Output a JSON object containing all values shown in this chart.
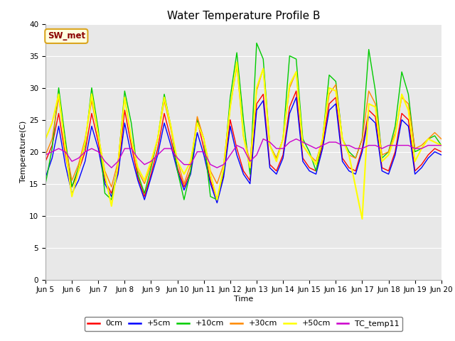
{
  "title": "Water Temperature Profile B",
  "xlabel": "Time",
  "ylabel": "Temperature(C)",
  "ylim": [
    0,
    40
  ],
  "xlim_days": [
    5,
    20
  ],
  "annotation": "SW_met",
  "legend_labels": [
    "0cm",
    "+5cm",
    "+10cm",
    "+30cm",
    "+50cm",
    "TC_temp11"
  ],
  "line_colors": [
    "#ff0000",
    "#0000ff",
    "#00cc00",
    "#ff8800",
    "#ffff00",
    "#cc00cc"
  ],
  "line_widths": [
    1.0,
    1.0,
    1.0,
    1.0,
    1.5,
    1.0
  ],
  "bg_color": "#e8e8e8",
  "fig_color": "#ffffff",
  "grid_color": "#ffffff",
  "title_fontsize": 11,
  "axis_label_fontsize": 8,
  "tick_label_fontsize": 7.5,
  "tick_dates": [
    "Jun 5",
    "Jun 6",
    "Jun 7",
    "Jun 8",
    "Jun 9",
    "Jun 10",
    "Jun 11",
    "Jun 12",
    "Jun 13",
    "Jun 14",
    "Jun 15",
    "Jun 16",
    "Jun 17",
    "Jun 18",
    "Jun 19",
    "Jun 20"
  ],
  "tick_positions": [
    5,
    6,
    7,
    8,
    9,
    10,
    11,
    12,
    13,
    14,
    15,
    16,
    17,
    18,
    19,
    20
  ],
  "data_x": [
    5.0,
    5.25,
    5.5,
    5.75,
    6.0,
    6.25,
    6.5,
    6.75,
    7.0,
    7.25,
    7.5,
    7.75,
    8.0,
    8.25,
    8.5,
    8.75,
    9.0,
    9.25,
    9.5,
    9.75,
    10.0,
    10.25,
    10.5,
    10.75,
    11.0,
    11.25,
    11.5,
    11.75,
    12.0,
    12.25,
    12.5,
    12.75,
    13.0,
    13.25,
    13.5,
    13.75,
    14.0,
    14.25,
    14.5,
    14.75,
    15.0,
    15.25,
    15.5,
    15.75,
    16.0,
    16.25,
    16.5,
    16.75,
    17.0,
    17.25,
    17.5,
    17.75,
    18.0,
    18.25,
    18.5,
    18.75,
    19.0,
    19.25,
    19.5,
    19.75,
    20.0
  ],
  "data_0cm": [
    18.5,
    21.0,
    26.0,
    19.5,
    14.5,
    17.0,
    20.0,
    26.0,
    21.5,
    15.5,
    13.5,
    17.0,
    26.5,
    21.0,
    16.0,
    13.0,
    16.5,
    20.5,
    26.0,
    22.0,
    17.5,
    14.5,
    17.0,
    25.0,
    20.5,
    15.5,
    12.5,
    16.5,
    25.0,
    20.5,
    17.0,
    15.5,
    27.5,
    29.0,
    18.0,
    17.0,
    19.5,
    27.0,
    29.5,
    19.0,
    17.5,
    17.0,
    21.0,
    27.5,
    28.5,
    19.0,
    17.5,
    17.0,
    20.5,
    26.5,
    25.5,
    17.5,
    17.0,
    20.0,
    26.0,
    25.0,
    17.0,
    18.0,
    19.5,
    20.5,
    20.0
  ],
  "data_5cm": [
    16.0,
    19.0,
    24.0,
    18.0,
    13.5,
    15.5,
    18.5,
    24.0,
    20.5,
    15.0,
    13.0,
    16.5,
    24.5,
    19.5,
    15.5,
    12.5,
    16.0,
    19.5,
    24.5,
    21.0,
    17.0,
    14.0,
    16.5,
    23.0,
    19.5,
    15.0,
    12.0,
    16.0,
    24.0,
    19.5,
    16.5,
    15.0,
    26.5,
    28.0,
    17.5,
    16.5,
    19.0,
    26.0,
    28.5,
    18.5,
    17.0,
    16.5,
    20.5,
    26.5,
    27.5,
    18.5,
    17.0,
    16.5,
    20.0,
    25.5,
    24.5,
    17.0,
    16.5,
    19.5,
    25.0,
    24.0,
    16.5,
    17.5,
    19.0,
    20.0,
    19.5
  ],
  "data_10cm": [
    15.0,
    20.5,
    30.0,
    22.0,
    14.5,
    17.5,
    21.0,
    30.0,
    23.5,
    13.5,
    12.5,
    18.0,
    29.5,
    24.5,
    16.5,
    13.5,
    17.5,
    22.0,
    29.0,
    24.0,
    17.0,
    12.5,
    17.0,
    25.0,
    22.0,
    13.0,
    12.5,
    17.0,
    28.5,
    35.5,
    25.0,
    16.5,
    37.0,
    34.5,
    21.0,
    19.0,
    22.0,
    35.0,
    34.5,
    22.0,
    20.0,
    17.0,
    22.0,
    32.0,
    31.0,
    22.0,
    20.0,
    19.0,
    22.0,
    36.0,
    29.5,
    19.0,
    20.0,
    24.0,
    32.5,
    29.0,
    20.0,
    20.5,
    22.0,
    22.5,
    21.0
  ],
  "data_30cm": [
    19.5,
    22.0,
    28.5,
    21.0,
    15.5,
    18.0,
    22.0,
    28.0,
    22.5,
    17.0,
    14.5,
    18.5,
    28.5,
    22.0,
    17.0,
    15.0,
    18.0,
    22.0,
    28.0,
    23.5,
    18.5,
    15.0,
    18.0,
    25.5,
    22.0,
    17.0,
    15.0,
    18.0,
    27.0,
    33.5,
    22.5,
    18.5,
    29.5,
    33.0,
    21.0,
    19.0,
    22.0,
    30.0,
    32.5,
    21.0,
    19.5,
    18.5,
    22.0,
    29.0,
    30.5,
    22.0,
    19.5,
    19.0,
    22.0,
    29.5,
    27.5,
    19.5,
    20.0,
    23.0,
    28.5,
    27.5,
    20.5,
    21.0,
    22.0,
    23.0,
    22.0
  ],
  "data_50cm": [
    22.0,
    24.5,
    29.0,
    20.5,
    13.0,
    17.0,
    21.5,
    29.0,
    22.5,
    16.5,
    11.5,
    18.0,
    28.5,
    22.0,
    17.5,
    15.5,
    18.5,
    22.0,
    28.5,
    24.0,
    18.5,
    16.5,
    18.5,
    24.5,
    22.0,
    16.5,
    12.5,
    17.5,
    27.0,
    34.0,
    22.5,
    17.5,
    30.0,
    33.0,
    21.0,
    18.5,
    22.0,
    30.5,
    32.5,
    21.0,
    19.5,
    18.0,
    22.0,
    30.0,
    29.5,
    22.0,
    19.5,
    14.5,
    9.5,
    27.5,
    27.0,
    18.5,
    19.5,
    22.5,
    29.0,
    26.5,
    18.5,
    20.5,
    22.0,
    21.5,
    21.0
  ],
  "data_tc11": [
    19.5,
    20.0,
    20.5,
    20.0,
    18.5,
    19.0,
    20.0,
    20.5,
    20.0,
    18.5,
    17.5,
    18.5,
    20.5,
    20.5,
    19.0,
    18.0,
    18.5,
    19.5,
    20.5,
    20.5,
    19.0,
    18.0,
    18.0,
    20.0,
    20.0,
    18.0,
    17.5,
    18.0,
    19.5,
    21.0,
    20.5,
    18.5,
    19.5,
    22.0,
    21.5,
    20.5,
    20.5,
    21.5,
    22.0,
    21.5,
    21.0,
    20.5,
    21.0,
    21.5,
    21.5,
    21.0,
    21.0,
    20.5,
    20.5,
    21.0,
    21.0,
    20.5,
    21.0,
    21.0,
    21.0,
    21.0,
    20.5,
    20.5,
    21.0,
    21.0,
    21.0
  ]
}
